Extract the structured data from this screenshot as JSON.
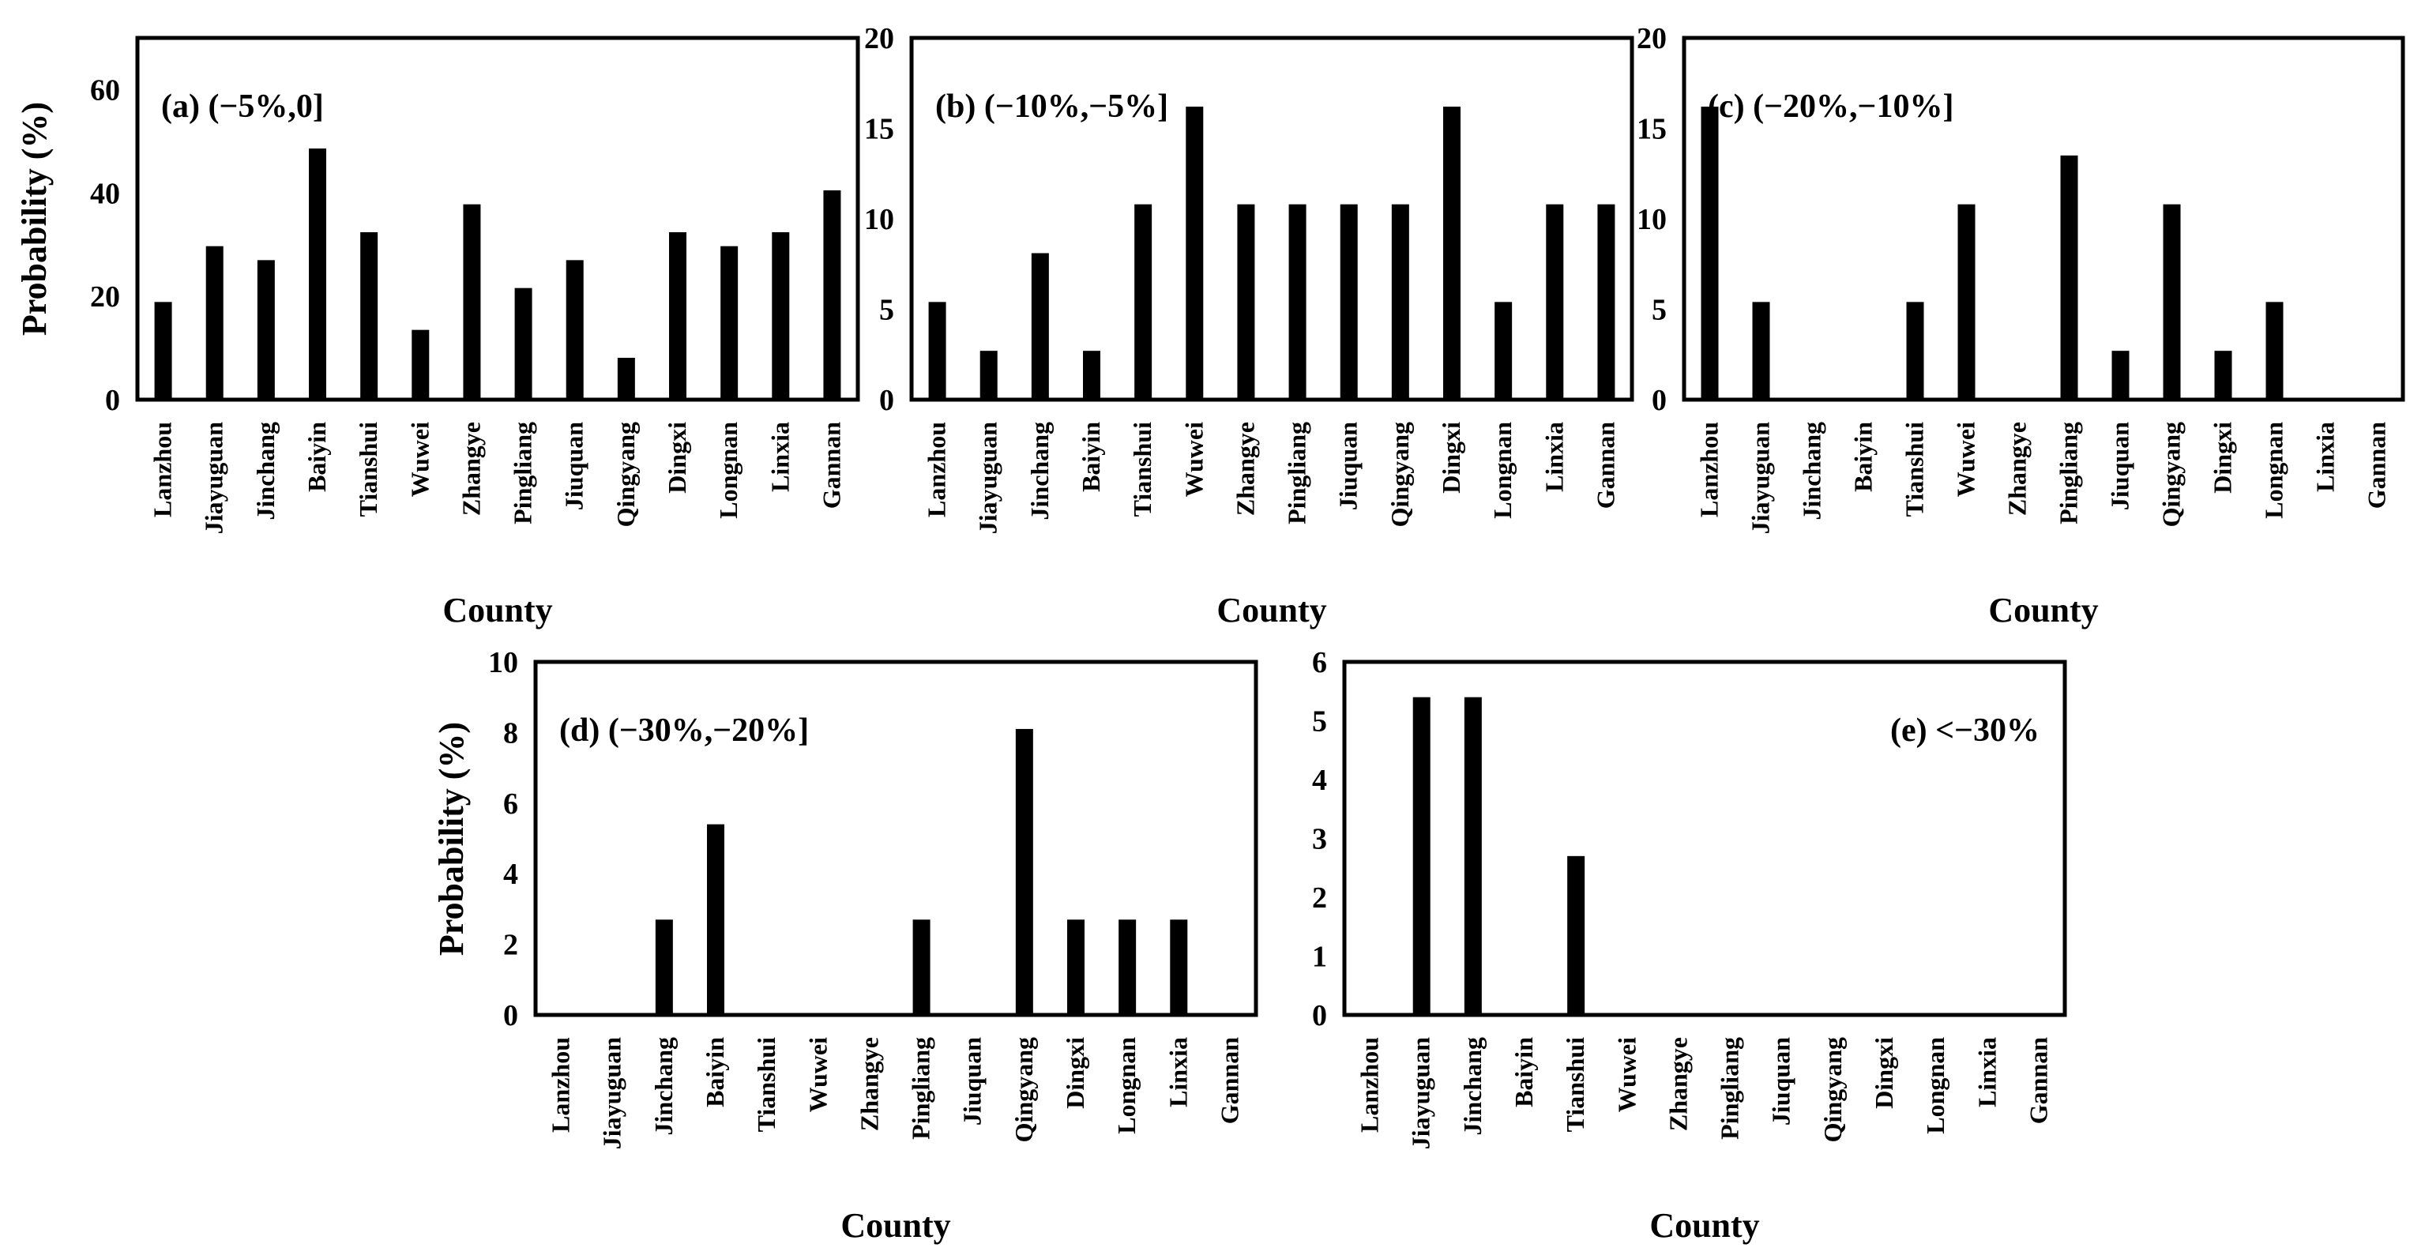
{
  "figure": {
    "background": "#ffffff",
    "bar_color": "#000000"
  },
  "chart_data": [
    {
      "id": "a",
      "type": "bar",
      "title": "(a) (−5%,0]",
      "xlabel": "County",
      "ylabel": "Probability (%)",
      "ylim": [
        0,
        70
      ],
      "yticks": [
        0,
        20,
        40,
        60
      ],
      "categories": [
        "Lanzhou",
        "Jiayuguan",
        "Jinchang",
        "Baiyin",
        "Tianshui",
        "Wuwei",
        "Zhangye",
        "Pingliang",
        "Jiuquan",
        "Qingyang",
        "Dingxi",
        "Longnan",
        "Linxia",
        "Gannan"
      ],
      "values": [
        18.9,
        29.7,
        27.0,
        48.6,
        32.4,
        13.5,
        37.8,
        21.6,
        27.0,
        8.1,
        32.4,
        29.7,
        32.4,
        40.5
      ]
    },
    {
      "id": "b",
      "type": "bar",
      "title": "(b) (−10%,−5%]",
      "xlabel": "County",
      "ylabel": "",
      "ylim": [
        0,
        20
      ],
      "yticks": [
        0,
        5,
        10,
        15,
        20
      ],
      "categories": [
        "Lanzhou",
        "Jiayuguan",
        "Jinchang",
        "Baiyin",
        "Tianshui",
        "Wuwei",
        "Zhangye",
        "Pingliang",
        "Jiuquan",
        "Qingyang",
        "Dingxi",
        "Longnan",
        "Linxia",
        "Gannan"
      ],
      "values": [
        5.4,
        2.7,
        8.1,
        2.7,
        10.8,
        16.2,
        10.8,
        10.8,
        10.8,
        10.8,
        16.2,
        5.4,
        10.8,
        10.8
      ]
    },
    {
      "id": "c",
      "type": "bar",
      "title": "(c) (−20%,−10%]",
      "xlabel": "County",
      "ylabel": "",
      "ylim": [
        0,
        20
      ],
      "yticks": [
        0,
        5,
        10,
        15,
        20
      ],
      "categories": [
        "Lanzhou",
        "Jiayuguan",
        "Jinchang",
        "Baiyin",
        "Tianshui",
        "Wuwei",
        "Zhangye",
        "Pingliang",
        "Jiuquan",
        "Qingyang",
        "Dingxi",
        "Longnan",
        "Linxia",
        "Gannan"
      ],
      "values": [
        16.2,
        5.4,
        0,
        0,
        5.4,
        10.8,
        0,
        13.5,
        2.7,
        10.8,
        2.7,
        5.4,
        0,
        0
      ]
    },
    {
      "id": "d",
      "type": "bar",
      "title": "(d) (−30%,−20%]",
      "xlabel": "County",
      "ylabel": "Probability (%)",
      "ylim": [
        0,
        10
      ],
      "yticks": [
        0,
        2,
        4,
        6,
        8,
        10
      ],
      "categories": [
        "Lanzhou",
        "Jiayuguan",
        "Jinchang",
        "Baiyin",
        "Tianshui",
        "Wuwei",
        "Zhangye",
        "Pingliang",
        "Jiuquan",
        "Qingyang",
        "Dingxi",
        "Longnan",
        "Linxia",
        "Gannan"
      ],
      "values": [
        0,
        0,
        2.7,
        5.4,
        0,
        0,
        0,
        2.7,
        0,
        8.1,
        2.7,
        2.7,
        2.7,
        0
      ]
    },
    {
      "id": "e",
      "type": "bar",
      "title": "(e) <−30%",
      "xlabel": "County",
      "ylabel": "",
      "ylim": [
        0,
        6
      ],
      "yticks": [
        0,
        1,
        2,
        3,
        4,
        5,
        6
      ],
      "categories": [
        "Lanzhou",
        "Jiayuguan",
        "Jinchang",
        "Baiyin",
        "Tianshui",
        "Wuwei",
        "Zhangye",
        "Pingliang",
        "Jiuquan",
        "Qingyang",
        "Dingxi",
        "Longnan",
        "Linxia",
        "Gannan"
      ],
      "values": [
        0,
        5.4,
        5.4,
        0,
        2.7,
        0,
        0,
        0,
        0,
        0,
        0,
        0,
        0,
        0
      ]
    }
  ]
}
